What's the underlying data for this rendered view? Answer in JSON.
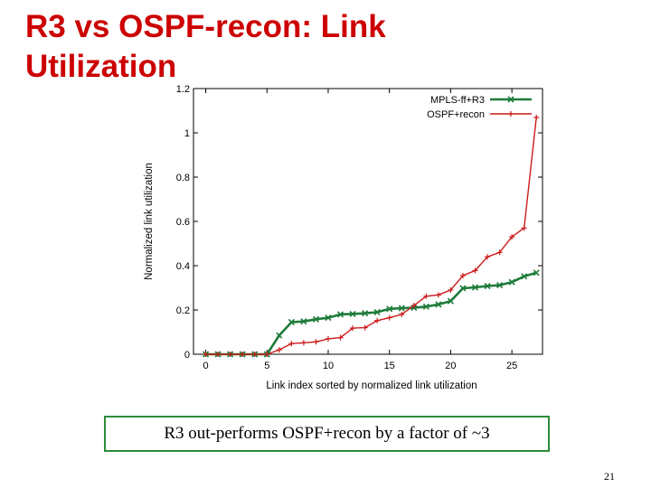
{
  "slide": {
    "title": "R3 vs OSPF-recon: Link Utilization",
    "callout": "R3 out-performs OSPF+recon by a factor of ~3",
    "page_number": "21"
  },
  "chart_data": {
    "type": "line",
    "xlabel": "Link index sorted by normalized link utilization",
    "ylabel": "Normalized link utilization",
    "xlim": [
      -1,
      27.5
    ],
    "ylim": [
      0,
      1.2
    ],
    "xticks": [
      0,
      5,
      10,
      15,
      20,
      25
    ],
    "yticks": [
      0,
      0.2,
      0.4,
      0.6,
      0.8,
      1,
      1.2
    ],
    "ytick_labels": [
      "0",
      "0.2",
      "0.4",
      "0.6",
      "0.8",
      "1",
      "1.2"
    ],
    "legend_position": "top-right",
    "x": [
      0,
      1,
      2,
      3,
      4,
      5,
      6,
      7,
      8,
      9,
      10,
      11,
      12,
      13,
      14,
      15,
      16,
      17,
      18,
      19,
      20,
      21,
      22,
      23,
      24,
      25,
      26,
      27
    ],
    "series": [
      {
        "name": "MPLS-ff+R3",
        "color": "#1e7b3a",
        "marker": "x",
        "values": [
          0,
          0,
          0,
          0,
          0,
          0,
          0.085,
          0.145,
          0.148,
          0.158,
          0.165,
          0.18,
          0.182,
          0.185,
          0.19,
          0.205,
          0.208,
          0.21,
          0.215,
          0.225,
          0.24,
          0.298,
          0.302,
          0.308,
          0.312,
          0.326,
          0.352,
          0.368
        ]
      },
      {
        "name": "OSPF+recon",
        "color": "#cc1a1a",
        "marker": "+",
        "values": [
          0,
          0,
          0,
          0,
          0,
          0,
          0.02,
          0.048,
          0.052,
          0.056,
          0.07,
          0.075,
          0.118,
          0.12,
          0.152,
          0.165,
          0.18,
          0.22,
          0.262,
          0.268,
          0.29,
          0.355,
          0.378,
          0.44,
          0.46,
          0.53,
          0.57,
          1.07
        ]
      }
    ]
  }
}
